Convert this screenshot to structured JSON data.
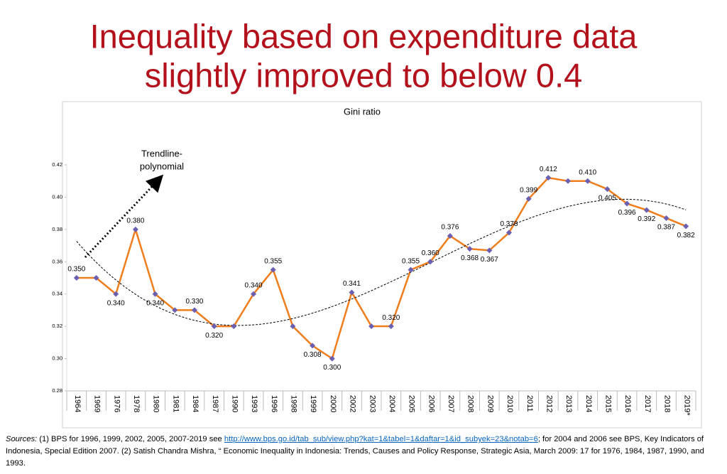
{
  "header": {
    "title": [
      "Inequality based on expenditure data",
      "slightly improved to below 0.4"
    ]
  },
  "chart_data": {
    "type": "line",
    "title": "Gini ratio",
    "categories": [
      "1964",
      "1969",
      "1976",
      "1978",
      "1980",
      "1981",
      "1984",
      "1987",
      "1990",
      "1993",
      "1996",
      "1998",
      "1999",
      "2000",
      "2002",
      "2003",
      "2004",
      "2005",
      "2006",
      "2007",
      "2008",
      "2009",
      "2010",
      "2011",
      "2012",
      "2013",
      "2014",
      "2015",
      "2016",
      "2017",
      "2018",
      "2019*"
    ],
    "series": [
      {
        "name": "Gini ratio",
        "color": "#f07d1c",
        "marker_color": "#6a5fb0",
        "values": [
          0.35,
          0.35,
          0.34,
          0.38,
          0.34,
          0.33,
          0.33,
          0.32,
          0.32,
          0.34,
          0.355,
          0.32,
          0.308,
          0.3,
          0.341,
          0.32,
          0.32,
          0.355,
          0.36,
          0.376,
          0.368,
          0.367,
          0.378,
          0.399,
          0.412,
          0.41,
          0.41,
          0.405,
          0.396,
          0.392,
          0.387,
          0.382
        ],
        "value_labels": [
          "0.350",
          null,
          "0.340",
          "0.380",
          "0.340",
          null,
          "0.330",
          "0.320",
          null,
          "0.340",
          "0.355",
          null,
          "0.308",
          "0.300",
          "0.341",
          null,
          "0.320",
          "0.355",
          "0.360",
          "0.376",
          "0.368",
          "0.367",
          "0.378",
          "0.399",
          "0.412",
          null,
          "0.410",
          "0.405",
          "0.396",
          "0.392",
          "0.387",
          "0.382"
        ]
      }
    ],
    "ylim": [
      0.28,
      0.42
    ],
    "yticks": [
      0.28,
      {
        "value": 0.3,
        "label": "0.30"
      },
      0.32,
      0.34,
      0.36,
      0.38,
      {
        "value": 0.4,
        "label": "0.40"
      },
      0.42
    ],
    "trendline": {
      "type": "polynomial",
      "order": 3
    },
    "annotation": [
      "Trendline-",
      "polynomial"
    ]
  },
  "footer": {
    "sources": [
      "Sources:",
      " (1) BPS for 1996, 1999, 2002, 2005, 2007-2019 see ",
      "http://www.bps.go.id/tab_sub/view.php?kat=1&tabel=1&daftar=1&id_subyek=23&notab=6",
      "; for 2004 and 2006 see BPS, Key Indicators of Indonesia, Special Edition 2007. (2) Satish Chandra Mishra, “ Economic Inequality in Indonesia: Trends, Causes and Policy Response, Strategic Asia, March 2009: 17 for 1976, 1984, 1987, 1990, and 1993."
    ]
  }
}
